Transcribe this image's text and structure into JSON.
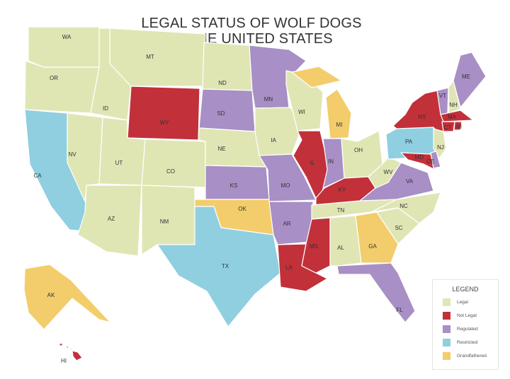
{
  "title": {
    "line1": "LEGAL STATUS OF WOLF DOGS",
    "line2": "IN THE UNITED STATES"
  },
  "colors": {
    "legal": "#dfe6b4",
    "not_legal": "#c2303a",
    "regulated": "#a88fc5",
    "restricted": "#8fcfe0",
    "grandfathered": "#f3cd6b"
  },
  "legend": {
    "title": "LEGEND",
    "items": [
      {
        "key": "legal",
        "label": "Legal"
      },
      {
        "key": "not_legal",
        "label": "Not Legal"
      },
      {
        "key": "regulated",
        "label": "Regulated"
      },
      {
        "key": "restricted",
        "label": "Restricted"
      },
      {
        "key": "grandfathered",
        "label": "Grandfathered"
      }
    ]
  },
  "states": [
    {
      "abbr": "WA",
      "status": "legal"
    },
    {
      "abbr": "OR",
      "status": "legal"
    },
    {
      "abbr": "CA",
      "status": "restricted"
    },
    {
      "abbr": "NV",
      "status": "legal"
    },
    {
      "abbr": "ID",
      "status": "legal"
    },
    {
      "abbr": "MT",
      "status": "legal"
    },
    {
      "abbr": "WY",
      "status": "not_legal"
    },
    {
      "abbr": "UT",
      "status": "legal"
    },
    {
      "abbr": "CO",
      "status": "legal"
    },
    {
      "abbr": "AZ",
      "status": "legal"
    },
    {
      "abbr": "NM",
      "status": "legal"
    },
    {
      "abbr": "ND",
      "status": "legal"
    },
    {
      "abbr": "SD",
      "status": "regulated"
    },
    {
      "abbr": "NE",
      "status": "legal"
    },
    {
      "abbr": "KS",
      "status": "regulated"
    },
    {
      "abbr": "OK",
      "status": "grandfathered"
    },
    {
      "abbr": "TX",
      "status": "restricted"
    },
    {
      "abbr": "MN",
      "status": "regulated"
    },
    {
      "abbr": "IA",
      "status": "legal"
    },
    {
      "abbr": "MO",
      "status": "regulated"
    },
    {
      "abbr": "AR",
      "status": "regulated"
    },
    {
      "abbr": "LA",
      "status": "not_legal"
    },
    {
      "abbr": "WI",
      "status": "legal"
    },
    {
      "abbr": "IL",
      "status": "not_legal"
    },
    {
      "abbr": "MI",
      "status": "grandfathered"
    },
    {
      "abbr": "IN",
      "status": "regulated"
    },
    {
      "abbr": "OH",
      "status": "legal"
    },
    {
      "abbr": "KY",
      "status": "not_legal"
    },
    {
      "abbr": "TN",
      "status": "legal"
    },
    {
      "abbr": "MS",
      "status": "not_legal"
    },
    {
      "abbr": "AL",
      "status": "legal"
    },
    {
      "abbr": "GA",
      "status": "grandfathered"
    },
    {
      "abbr": "FL",
      "status": "regulated"
    },
    {
      "abbr": "SC",
      "status": "legal"
    },
    {
      "abbr": "NC",
      "status": "legal"
    },
    {
      "abbr": "VA",
      "status": "regulated"
    },
    {
      "abbr": "WV",
      "status": "legal"
    },
    {
      "abbr": "PA",
      "status": "restricted"
    },
    {
      "abbr": "NY",
      "status": "not_legal"
    },
    {
      "abbr": "VT",
      "status": "regulated"
    },
    {
      "abbr": "NH",
      "status": "legal"
    },
    {
      "abbr": "ME",
      "status": "regulated"
    },
    {
      "abbr": "MA",
      "status": "not_legal"
    },
    {
      "abbr": "CT",
      "status": "not_legal"
    },
    {
      "abbr": "RI",
      "status": "not_legal"
    },
    {
      "abbr": "NJ",
      "status": "legal"
    },
    {
      "abbr": "MD",
      "status": "not_legal"
    },
    {
      "abbr": "DE",
      "status": "regulated"
    },
    {
      "abbr": "AK",
      "status": "grandfathered"
    },
    {
      "abbr": "HI",
      "status": "not_legal"
    }
  ]
}
